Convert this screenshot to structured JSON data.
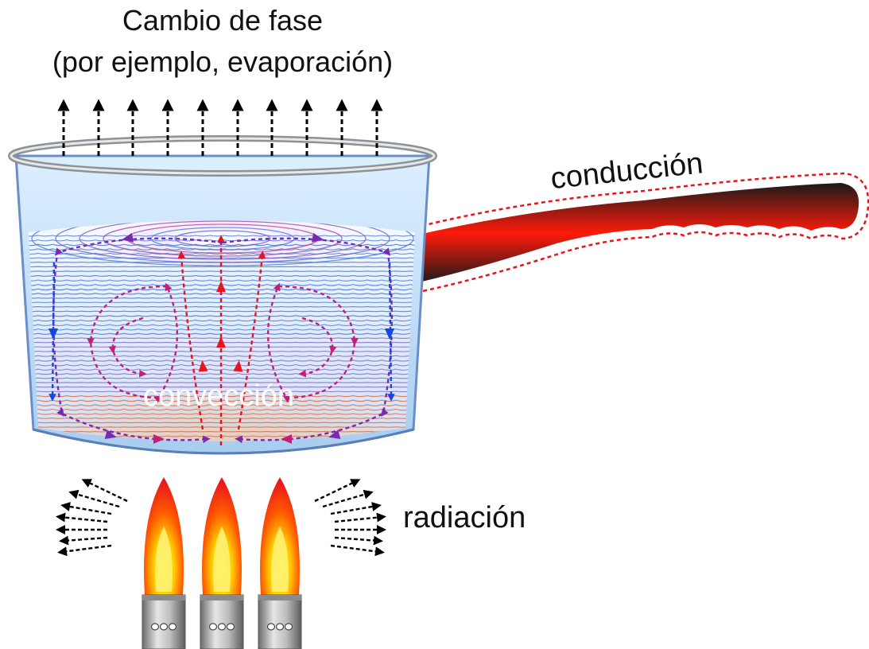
{
  "title": {
    "line1": "Cambio de fase",
    "line2": "(por ejemplo, evaporación)"
  },
  "labels": {
    "conduction": "conducción",
    "convection": "convección",
    "radiation": "radiación"
  },
  "colors": {
    "hot": "#e8141c",
    "cold": "#1446e6",
    "mid": "#7a2ab0",
    "water_edge": "#5a8fd8",
    "heat_core": "#ff5a00",
    "flame_outer": "#ff2a00",
    "flame_inner": "#ffd400",
    "pot_rim": "#9aa0a6",
    "handle_dark": "#1a1a1a"
  },
  "icons": {
    "evaporation": "arrow-up-dashed",
    "radiation": "arrow-dashed-outward",
    "convection": "circulation-arrows",
    "flame": "gas-flame",
    "burner": "burner-nozzle"
  },
  "burners": [
    "left",
    "center",
    "right"
  ]
}
